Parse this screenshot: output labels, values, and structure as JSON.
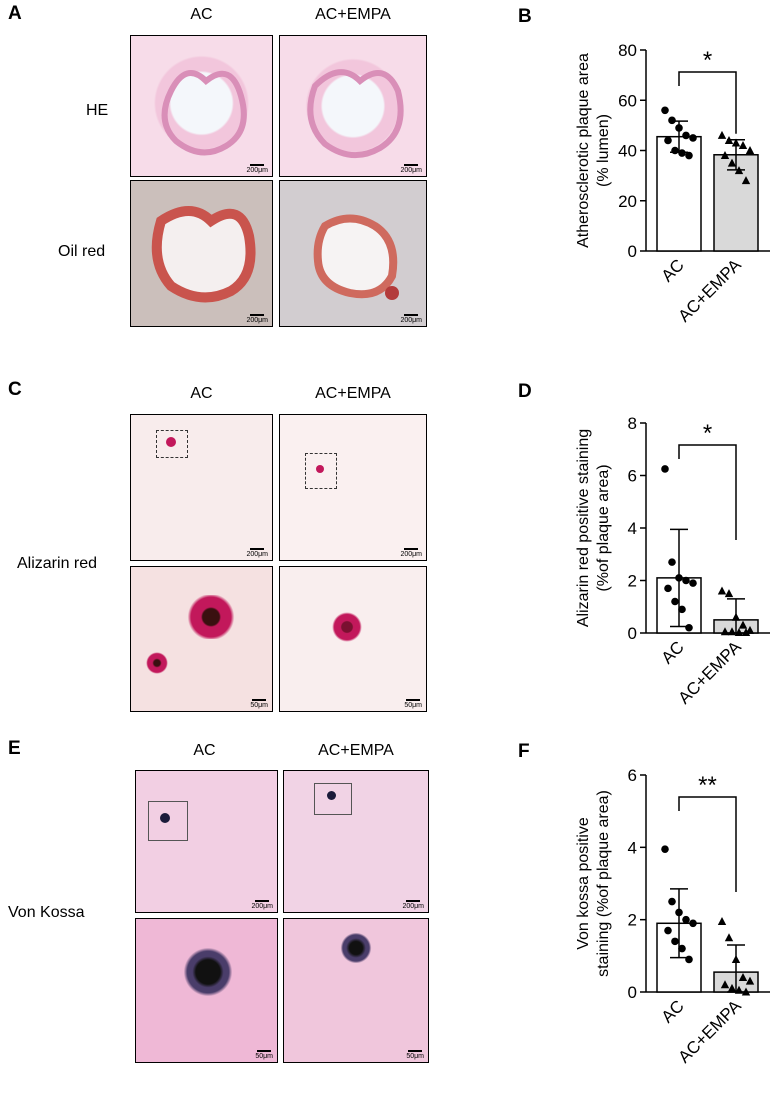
{
  "panels": {
    "A": {
      "letter": "A",
      "col_labels": [
        "AC",
        "AC+EMPA"
      ],
      "row_labels": [
        "HE",
        "Oil red"
      ],
      "scalebars": [
        "200μm",
        "200μm",
        "200μm",
        "200μm"
      ]
    },
    "C": {
      "letter": "C",
      "col_labels": [
        "AC",
        "AC+EMPA"
      ],
      "row_label": "Alizarin red",
      "scalebars": [
        "200μm",
        "200μm",
        "50μm",
        "50μm"
      ]
    },
    "E": {
      "letter": "E",
      "col_labels": [
        "AC",
        "AC+EMPA"
      ],
      "row_label": "Von Kossa",
      "scalebars": [
        "200μm",
        "200μm",
        "50μm",
        "50μm"
      ]
    }
  },
  "chart_data": [
    {
      "letter": "B",
      "type": "bar",
      "categories": [
        "AC",
        "AC+EMPA"
      ],
      "values": [
        45.5,
        38.3
      ],
      "error": [
        6.2,
        6.0
      ],
      "points": [
        [
          56,
          52,
          49,
          46,
          45,
          44,
          40,
          39,
          38
        ],
        [
          46,
          44,
          43,
          42,
          40,
          38,
          35,
          32,
          28
        ]
      ],
      "markers": [
        "circle",
        "triangle"
      ],
      "fills": [
        "#ffffff",
        "#d9d9d9"
      ],
      "ylabel_lines": [
        "Atherosclerotic plaque area",
        "(% lumen)"
      ],
      "ylim": [
        0,
        80
      ],
      "yticks": [
        0,
        20,
        40,
        60,
        80
      ],
      "significance": "*"
    },
    {
      "letter": "D",
      "type": "bar",
      "categories": [
        "AC",
        "AC+EMPA"
      ],
      "values": [
        2.1,
        0.5
      ],
      "error": [
        1.85,
        0.8
      ],
      "points": [
        [
          6.25,
          2.7,
          2.1,
          2.0,
          1.9,
          1.7,
          1.2,
          0.9,
          0.2
        ],
        [
          1.6,
          1.5,
          0.6,
          0.3,
          0.1,
          0.05,
          0.05,
          0.02,
          0.02
        ]
      ],
      "markers": [
        "circle",
        "triangle"
      ],
      "fills": [
        "#ffffff",
        "#d9d9d9"
      ],
      "ylabel_lines": [
        "Alizarin red positive staining",
        "(%of plaque area)"
      ],
      "ylim": [
        0,
        8
      ],
      "yticks": [
        0,
        2,
        4,
        6,
        8
      ],
      "significance": "*"
    },
    {
      "letter": "F",
      "type": "bar",
      "categories": [
        "AC",
        "AC+EMPA"
      ],
      "values": [
        1.9,
        0.55
      ],
      "error": [
        0.95,
        0.75
      ],
      "points": [
        [
          3.95,
          2.5,
          2.2,
          2.0,
          1.9,
          1.7,
          1.4,
          1.2,
          0.9
        ],
        [
          1.95,
          1.5,
          0.9,
          0.4,
          0.3,
          0.2,
          0.1,
          0.05,
          0.0
        ]
      ],
      "markers": [
        "circle",
        "triangle"
      ],
      "fills": [
        "#ffffff",
        "#d9d9d9"
      ],
      "ylabel_lines": [
        "Von kossa positive",
        "staining (%of plaque  area)"
      ],
      "ylim": [
        0,
        6
      ],
      "yticks": [
        0,
        2,
        4,
        6
      ],
      "significance": "**"
    }
  ]
}
